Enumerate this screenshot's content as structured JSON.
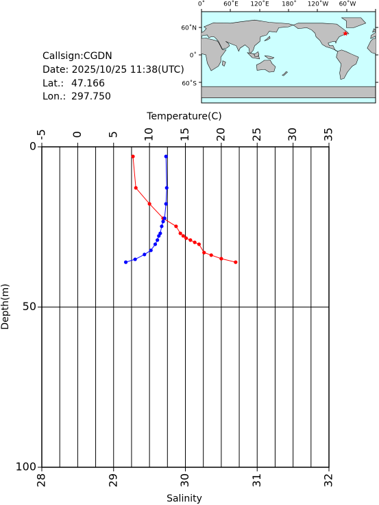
{
  "chart_data": {
    "type": "profile",
    "x2_label": "Temperature(C)",
    "x_label": "Salinity",
    "y_label": "Depth(m)",
    "x2lim": [
      -5,
      35
    ],
    "x2ticks": [
      -5,
      0,
      5,
      10,
      15,
      20,
      25,
      30,
      35
    ],
    "xlim": [
      28,
      32
    ],
    "xticks": [
      28,
      29,
      30,
      31,
      32
    ],
    "ylim": [
      0,
      100
    ],
    "yticks": [
      0,
      50,
      100
    ],
    "y_inverted": true,
    "xgrid_step": 0.25,
    "series": [
      {
        "axis": "x2",
        "color": "#ff0000",
        "values": [
          7.7,
          8.1,
          10.0,
          11.9,
          13.7,
          14.3,
          14.7,
          15.1,
          15.7,
          16.3,
          16.9,
          17.6,
          18.6,
          20.0,
          22.0
        ],
        "depth": [
          3,
          12.8,
          17.8,
          22.3,
          24.8,
          27,
          27.8,
          28.5,
          29.1,
          29.8,
          30.4,
          33,
          33.8,
          34.9,
          36
        ]
      },
      {
        "axis": "x",
        "color": "#0000ff",
        "values": [
          29.73,
          29.74,
          29.73,
          29.71,
          29.69,
          29.67,
          29.65,
          29.63,
          29.61,
          29.58,
          29.52,
          29.43,
          29.3,
          29.17
        ],
        "depth": [
          3,
          12.8,
          17.8,
          22.3,
          23.3,
          24.8,
          27,
          27.8,
          29.1,
          30.4,
          32.3,
          33.6,
          35.1,
          36
        ]
      }
    ]
  },
  "station": {
    "callsign": "Callsign:CGDN",
    "date": "Date:  2025/10/25 11:38(UTC)",
    "lat_label": "Lat.:",
    "lat": "47.166",
    "lon_label": "Lon.:",
    "lon": "297.750",
    "lat_value": 47.166,
    "lon_value": 297.75
  },
  "map": {
    "lon_labels": [
      "0˚",
      "60˚E",
      "120˚E",
      "180˚",
      "120˚W",
      "60˚W"
    ],
    "lat_labels": [
      "60˚N",
      "0˚",
      "60˚S"
    ],
    "marker_color": "#ff0000"
  }
}
